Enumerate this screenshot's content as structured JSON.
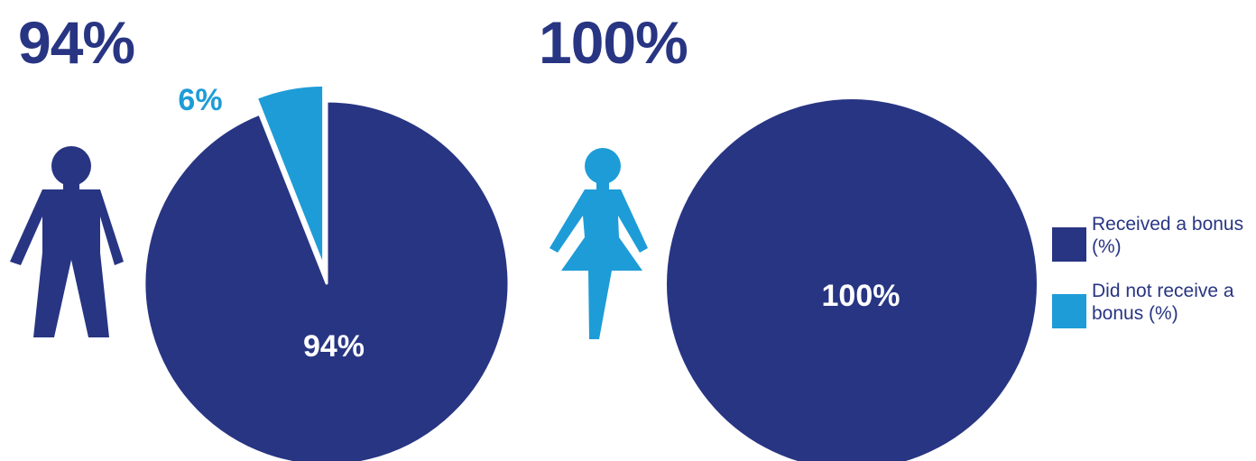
{
  "colors": {
    "received": "#283583",
    "not_received": "#1e9cd7",
    "man_icon": "#283583",
    "woman_icon": "#1e9cd7"
  },
  "headlines": {
    "men": "94%",
    "women": "100%"
  },
  "chart_data": [
    {
      "type": "pie",
      "title": "",
      "series": [
        {
          "name": "Received a bonus (%)",
          "values": [
            94
          ]
        },
        {
          "name": "Did not receive a bonus (%)",
          "values": [
            6
          ]
        }
      ],
      "slices": [
        {
          "label": "Received a bonus (%)",
          "value": 94,
          "data_label": "94%"
        },
        {
          "label": "Did not receive a bonus (%)",
          "value": 6,
          "data_label": "6%",
          "exploded": true
        }
      ],
      "icon": "man-icon"
    },
    {
      "type": "pie",
      "title": "",
      "series": [
        {
          "name": "Received a bonus (%)",
          "values": [
            100
          ]
        },
        {
          "name": "Did not receive a bonus (%)",
          "values": [
            0
          ]
        }
      ],
      "slices": [
        {
          "label": "Received a bonus (%)",
          "value": 100,
          "data_label": "100%"
        },
        {
          "label": "Did not receive a bonus (%)",
          "value": 0,
          "data_label": ""
        }
      ],
      "icon": "woman-icon"
    }
  ],
  "legend": {
    "placement": "right",
    "items": [
      {
        "label": "Received a bonus (%)",
        "color_key": "received"
      },
      {
        "label": "Did not receive a bonus (%)",
        "color_key": "not_received"
      }
    ]
  }
}
